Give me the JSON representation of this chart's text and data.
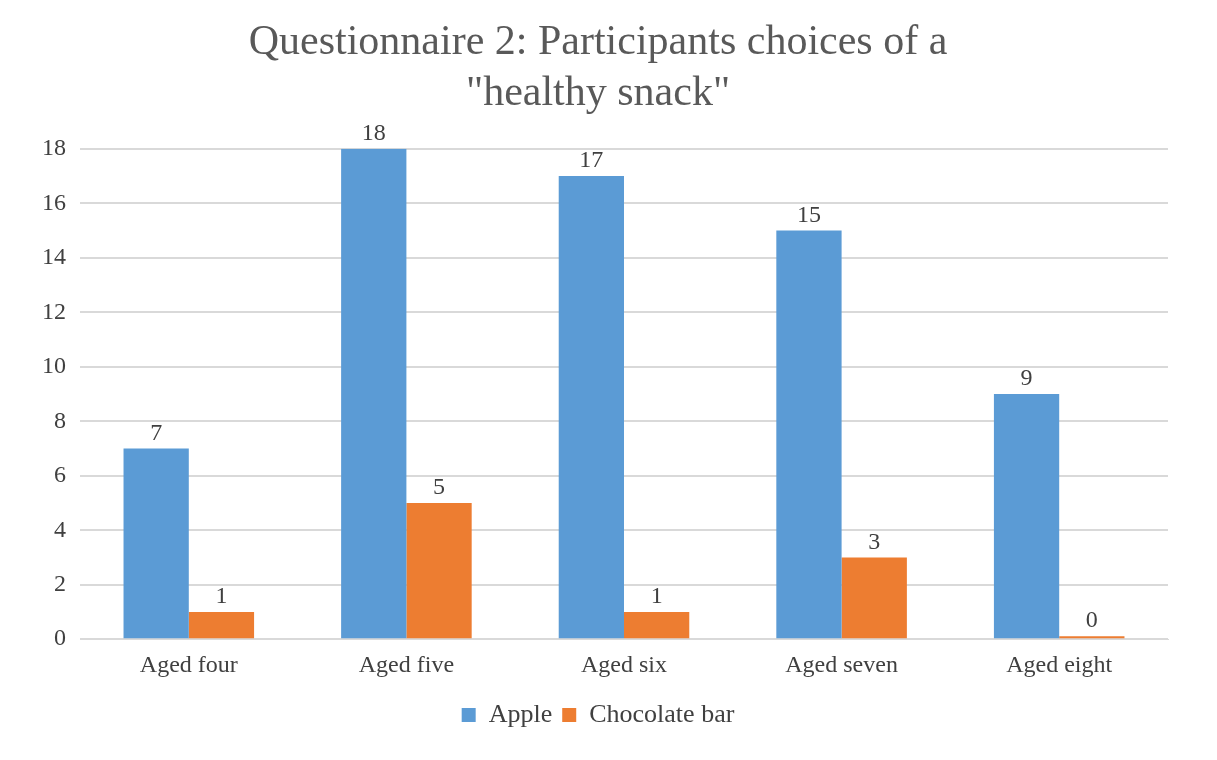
{
  "chart_data": {
    "type": "bar",
    "title": "Questionnaire 2: Participants choices of a \"healthy snack\"",
    "categories": [
      "Aged four",
      "Aged five",
      "Aged six",
      "Aged seven",
      "Aged eight"
    ],
    "series": [
      {
        "name": "Apple",
        "color": "#5b9bd5",
        "values": [
          7,
          18,
          17,
          15,
          9
        ]
      },
      {
        "name": "Chocolate bar",
        "color": "#ed7d31",
        "values": [
          1,
          5,
          1,
          3,
          0
        ]
      }
    ],
    "ylim": [
      0,
      18
    ],
    "yticks": [
      0,
      2,
      4,
      6,
      8,
      10,
      12,
      14,
      16,
      18
    ],
    "grid": "y",
    "legend": "bottom",
    "data_labels": true
  }
}
